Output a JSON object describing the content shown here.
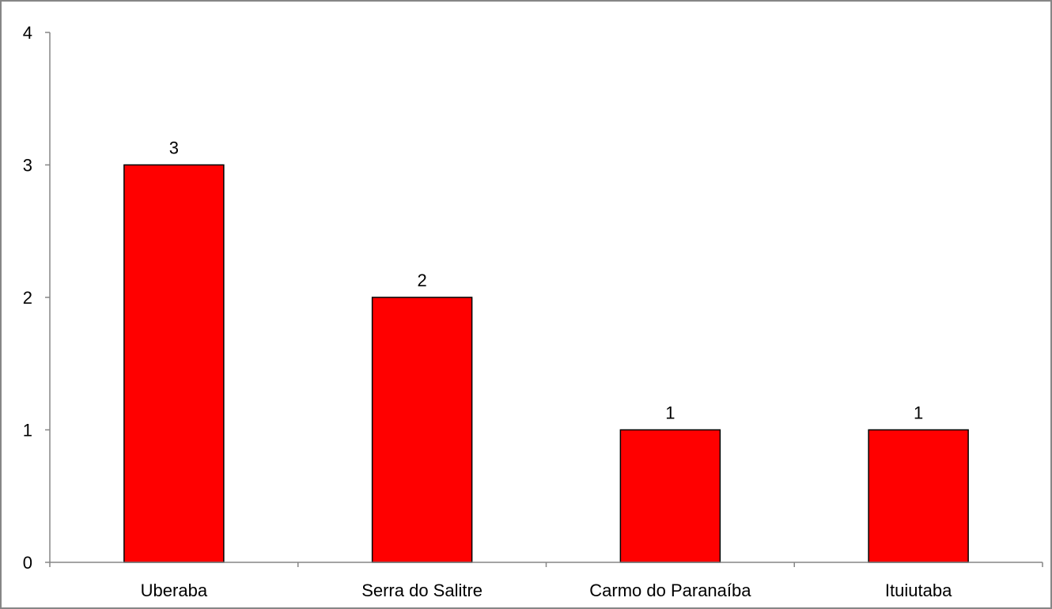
{
  "chart_data": {
    "type": "bar",
    "categories": [
      "Uberaba",
      "Serra do Salitre",
      "Carmo do Paranaíba",
      "Ituiutaba"
    ],
    "values": [
      3,
      2,
      1,
      1
    ],
    "data_labels": [
      "3",
      "2",
      "1",
      "1"
    ],
    "yticks": [
      0,
      1,
      2,
      3,
      4
    ],
    "ylim": [
      0,
      4
    ],
    "title": "",
    "xlabel": "",
    "ylabel": "",
    "grid": false,
    "legend": "none",
    "colors": {
      "bar_fill": "#ff0000",
      "bar_stroke": "#000000",
      "axis": "#868686",
      "frame": "#868686",
      "text": "#000000"
    }
  }
}
